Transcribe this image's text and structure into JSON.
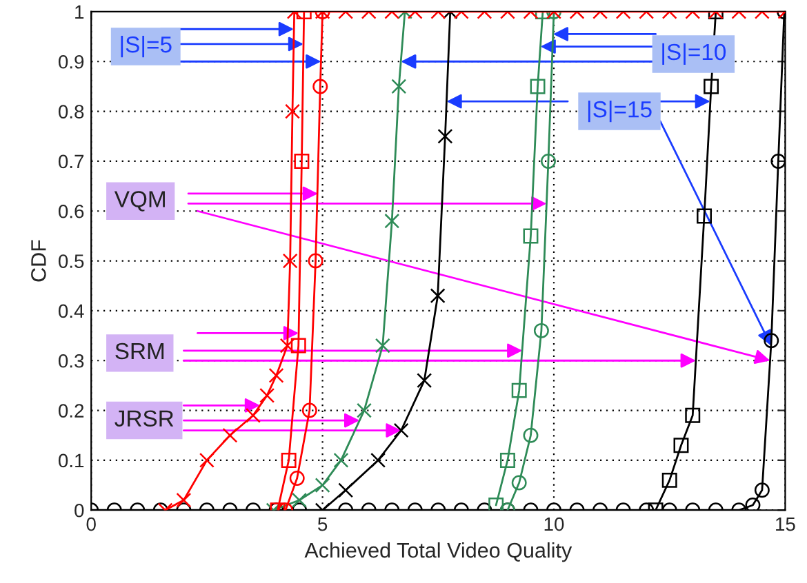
{
  "chart_data": {
    "type": "line",
    "xlabel": "Achieved Total Video Quality",
    "ylabel": "CDF",
    "xlim": [
      0,
      15
    ],
    "xticks": [
      0,
      5,
      10,
      15
    ],
    "ylim": [
      0,
      1
    ],
    "yticks": [
      0,
      0.1,
      0.2,
      0.3,
      0.4,
      0.5,
      0.6,
      0.7,
      0.8,
      0.9,
      1
    ],
    "grid": true,
    "annotations": [
      {
        "text": "|S|=5",
        "x": 4.38,
        "y": 0.965
      },
      {
        "text": "|S|=10",
        "x": 9.71,
        "y": 0.93
      },
      {
        "text": "|S|=15",
        "x": 7.68,
        "y": 0.82
      },
      {
        "text": "VQM",
        "x": 4.9,
        "y": 0.635
      },
      {
        "text": "SRM",
        "x": 9.32,
        "y": 0.32
      },
      {
        "text": "JRSR",
        "x": 3.65,
        "y": 0.21
      }
    ],
    "series": [
      {
        "color": "#ff0000",
        "marker": "cross",
        "x": [
          1.6,
          2.0,
          2.5,
          3.0,
          3.5,
          3.8,
          4.0,
          4.24,
          4.3,
          4.35,
          4.39,
          5,
          5.5,
          6,
          6.5,
          7,
          7.5,
          8,
          8.5,
          9,
          9.5,
          10,
          10.5,
          11,
          11.5,
          12,
          12.5,
          13,
          13.5,
          14,
          14.5,
          15
        ],
        "values": [
          0,
          0.02,
          0.1,
          0.15,
          0.19,
          0.23,
          0.27,
          0.33,
          0.5,
          0.8,
          1,
          1,
          1,
          1,
          1,
          1,
          1,
          1,
          1,
          1,
          1,
          1,
          1,
          1,
          1,
          1,
          1,
          1,
          1,
          1,
          1,
          1
        ]
      },
      {
        "color": "#ff0000",
        "marker": "square",
        "x": [
          4.03,
          4.27,
          4.48,
          4.55,
          4.6
        ],
        "values": [
          0,
          0.1,
          0.33,
          0.7,
          1
        ]
      },
      {
        "color": "#ff0000",
        "marker": "circle",
        "x": [
          4.2,
          4.45,
          4.72,
          4.85,
          4.95,
          5.0
        ],
        "values": [
          0,
          0.064,
          0.2,
          0.5,
          0.85,
          1
        ]
      },
      {
        "color": "#2e8b57",
        "marker": "cross",
        "x": [
          3.94,
          4.5,
          5.0,
          5.4,
          5.9,
          6.3,
          6.5,
          6.65,
          6.78
        ],
        "values": [
          0,
          0.02,
          0.05,
          0.1,
          0.2,
          0.33,
          0.58,
          0.85,
          1
        ]
      },
      {
        "color": "#000000",
        "marker": "cross",
        "x": [
          5.0,
          5.5,
          6.2,
          6.7,
          7.2,
          7.49,
          7.65,
          7.76
        ],
        "values": [
          0,
          0.04,
          0.1,
          0.16,
          0.26,
          0.43,
          0.75,
          1
        ]
      },
      {
        "color": "#2e8b57",
        "marker": "square",
        "x": [
          8.75,
          9.0,
          9.25,
          9.5,
          9.65,
          9.76
        ],
        "values": [
          0.01,
          0.1,
          0.24,
          0.55,
          0.85,
          1
        ]
      },
      {
        "color": "#2e8b57",
        "marker": "circle",
        "x": [
          9.0,
          9.25,
          9.5,
          9.73,
          9.88,
          10.0
        ],
        "values": [
          0,
          0.055,
          0.15,
          0.36,
          0.7,
          1
        ]
      },
      {
        "color": "#000000",
        "marker": "square",
        "x": [
          12.2,
          12.5,
          12.75,
          13.0,
          13.25,
          13.4,
          13.5
        ],
        "values": [
          0,
          0.06,
          0.13,
          0.19,
          0.59,
          0.85,
          1
        ]
      },
      {
        "color": "#000000",
        "marker": "circle",
        "x": [
          0,
          0.5,
          1.0,
          1.5,
          2.0,
          2.5,
          3.0,
          3.5,
          4.0,
          4.5,
          5.5,
          6.0,
          6.5,
          7.0,
          7.5,
          8.0,
          8.5,
          9.0,
          9.5,
          10.0,
          10.5,
          11.0,
          11.5,
          12.0,
          12.5,
          13.0,
          13.5,
          14.0,
          14.3,
          14.5,
          14.7,
          14.85,
          14.98
        ],
        "values": [
          0,
          0,
          0,
          0,
          0,
          0,
          0,
          0,
          0,
          0,
          0,
          0,
          0,
          0,
          0,
          0,
          0,
          0,
          0,
          0,
          0,
          0,
          0,
          0,
          0,
          0,
          0,
          0,
          0.01,
          0.04,
          0.34,
          0.7,
          1
        ]
      }
    ]
  }
}
